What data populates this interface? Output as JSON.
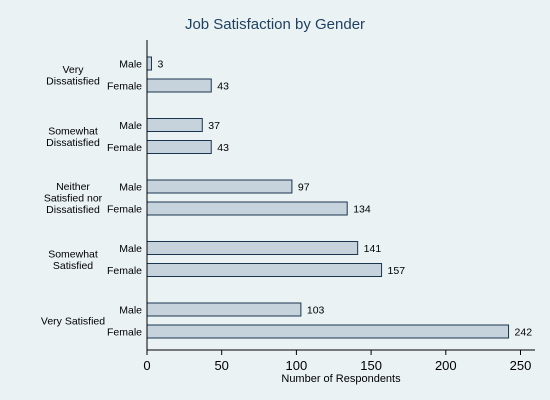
{
  "chart_data": {
    "type": "bar",
    "orientation": "horizontal",
    "title": "Job Satisfaction by Gender",
    "xlabel": "Number of Respondents",
    "ylabel": "",
    "xlim": [
      0,
      260
    ],
    "xticks": [
      0,
      50,
      100,
      150,
      200,
      250
    ],
    "grid": false,
    "groups": [
      {
        "label_lines": [
          "Very",
          "Dissatisfied"
        ],
        "bars": [
          {
            "label": "Male",
            "value": 3
          },
          {
            "label": "Female",
            "value": 43
          }
        ]
      },
      {
        "label_lines": [
          "Somewhat",
          "Dissatisfied"
        ],
        "bars": [
          {
            "label": "Male",
            "value": 37
          },
          {
            "label": "Female",
            "value": 43
          }
        ]
      },
      {
        "label_lines": [
          "Neither",
          "Satisfied nor",
          "Dissatisfied"
        ],
        "bars": [
          {
            "label": "Male",
            "value": 97
          },
          {
            "label": "Female",
            "value": 134
          }
        ]
      },
      {
        "label_lines": [
          "Somewhat",
          "Satisfied"
        ],
        "bars": [
          {
            "label": "Male",
            "value": 141
          },
          {
            "label": "Female",
            "value": 157
          }
        ]
      },
      {
        "label_lines": [
          "Very Satisfied"
        ],
        "bars": [
          {
            "label": "Male",
            "value": 103
          },
          {
            "label": "Female",
            "value": 242
          }
        ]
      }
    ]
  }
}
